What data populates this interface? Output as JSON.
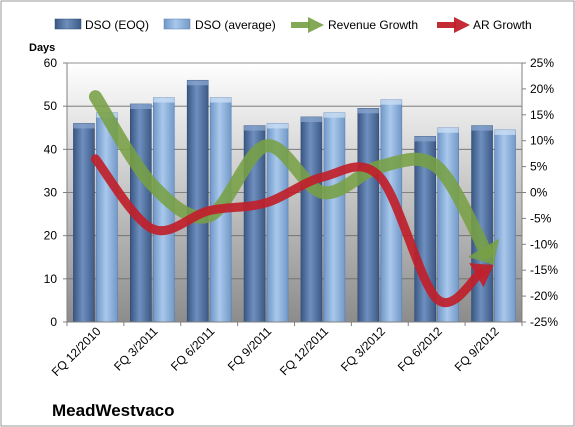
{
  "chart_data": {
    "type": "bar",
    "company": "MeadWestvaco",
    "left_axis_label": "Days",
    "categories": [
      "FQ 12/2010",
      "FQ 3/2011",
      "FQ 6/2011",
      "FQ 9/2011",
      "FQ 12/2011",
      "FQ 3/2012",
      "FQ 6/2012",
      "FQ 9/2012"
    ],
    "left_axis": {
      "min": 0,
      "max": 60,
      "ticks": [
        "0",
        "10",
        "20",
        "30",
        "40",
        "50",
        "60"
      ]
    },
    "right_axis": {
      "min": -25,
      "max": 25,
      "ticks": [
        "-25%",
        "-20%",
        "-15%",
        "-10%",
        "-5%",
        "0%",
        "5%",
        "10%",
        "15%",
        "20%",
        "25%"
      ]
    },
    "bar_series": [
      {
        "name": "DSO (EOQ)",
        "color": "#4f6e9e",
        "values": [
          46,
          50.5,
          56,
          45.5,
          47.5,
          49.5,
          43,
          45.5
        ]
      },
      {
        "name": "DSO (average)",
        "color": "#8db3e2",
        "values": [
          48.5,
          52,
          52,
          46,
          48.5,
          51.5,
          45,
          44.5
        ]
      }
    ],
    "line_series": [
      {
        "name": "Revenue Growth",
        "color": "#77a044",
        "values": [
          18.5,
          1.5,
          -4.5,
          9,
          0,
          5,
          5,
          -14
        ]
      },
      {
        "name": "AR Growth",
        "color": "#c0202a",
        "values": [
          6.5,
          -7,
          -3.5,
          -2,
          3,
          3,
          -20.5,
          -14
        ]
      }
    ],
    "grid": true,
    "legend": "top"
  }
}
